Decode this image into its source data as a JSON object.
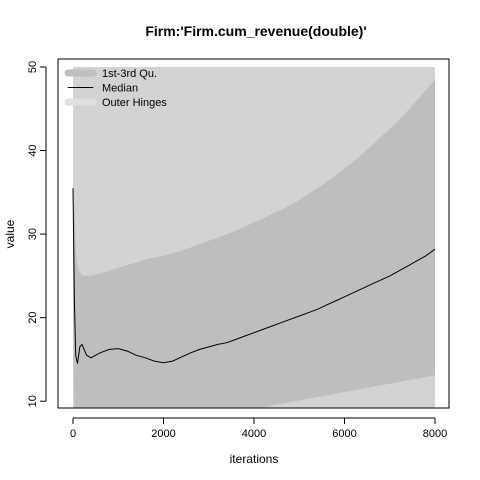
{
  "chart_data": {
    "type": "area",
    "title": "Firm:'Firm.cum_revenue(double)'",
    "xlabel": "iterations",
    "ylabel": "value",
    "xlim": [
      0,
      8000
    ],
    "ylim": [
      5,
      50
    ],
    "x_ticks": [
      "0",
      "2000",
      "4000",
      "6000",
      "8000"
    ],
    "y_ticks": [
      "10",
      "20",
      "30",
      "40",
      "50"
    ],
    "grid": false,
    "legend_position": "top-left",
    "legend": [
      "1st-3rd Qu.",
      "Median",
      "Outer Hinges"
    ],
    "colors": {
      "outer_hinges": "#d3d3d3",
      "quartiles": "#bebebe",
      "median": "#000000",
      "axis": "#000000"
    },
    "series": [
      {
        "name": "Outer Hinges",
        "x": [
          0,
          30,
          60,
          100,
          150,
          200,
          400,
          600,
          800,
          1000,
          1200,
          1400,
          1600,
          1800,
          2000,
          2200,
          2400,
          2600,
          2800,
          3000,
          3200,
          3400,
          3600,
          3800,
          4000,
          4200,
          4400,
          4600,
          4800,
          5000,
          5200,
          5400,
          5600,
          5800,
          6000,
          6200,
          6400,
          6600,
          6800,
          7000,
          7200,
          7400,
          7600,
          7800,
          8000
        ],
        "lower": [
          5,
          5,
          5,
          5,
          5,
          5,
          5,
          5,
          5,
          5,
          5,
          5,
          5,
          5,
          5,
          5,
          5,
          5,
          5,
          5,
          5,
          5,
          5,
          5,
          5,
          5,
          5,
          5,
          5,
          5,
          5,
          5,
          5,
          5,
          5,
          5,
          5,
          5,
          5,
          5,
          5,
          5,
          5,
          5,
          5
        ],
        "upper": [
          50,
          50,
          50,
          50,
          50,
          50,
          50,
          50,
          50,
          50,
          50,
          50,
          50,
          50,
          50,
          50,
          50,
          50,
          50,
          50,
          50,
          50,
          50,
          50,
          50,
          50,
          50,
          50,
          50,
          50,
          50,
          50,
          50,
          50,
          50,
          50,
          50,
          50,
          50,
          50,
          50,
          50,
          50,
          50,
          50
        ]
      },
      {
        "name": "1st-3rd Qu.",
        "x": [
          0,
          30,
          60,
          100,
          150,
          200,
          400,
          600,
          800,
          1000,
          1200,
          1400,
          1600,
          1800,
          2000,
          2200,
          2400,
          2600,
          2800,
          3000,
          3200,
          3400,
          3600,
          3800,
          4000,
          4200,
          4400,
          4600,
          4800,
          5000,
          5200,
          5400,
          5600,
          5800,
          6000,
          6200,
          6400,
          6600,
          6800,
          7000,
          7200,
          7400,
          7600,
          7800,
          8000
        ],
        "lower": [
          20,
          8,
          6,
          8,
          9,
          9,
          8.5,
          8,
          7.8,
          7.6,
          7.4,
          7.2,
          7,
          6.9,
          6.8,
          7,
          7.2,
          7.5,
          7.7,
          8,
          8.2,
          8.4,
          8.6,
          8.8,
          9,
          9.2,
          9.5,
          9.7,
          9.9,
          10.1,
          10.3,
          10.5,
          10.7,
          10.9,
          11.1,
          11.3,
          11.5,
          11.7,
          11.9,
          12.1,
          12.3,
          12.5,
          12.7,
          12.9,
          13.1
        ],
        "upper": [
          30,
          34,
          28,
          26,
          25.5,
          25,
          25,
          25.3,
          25.6,
          26,
          26.3,
          26.6,
          27,
          27.2,
          27.4,
          27.7,
          28,
          28.4,
          28.8,
          29.2,
          29.6,
          30,
          30.4,
          30.9,
          31.4,
          31.9,
          32.4,
          32.9,
          33.5,
          34.1,
          34.8,
          35.5,
          36.2,
          37,
          37.8,
          38.7,
          39.6,
          40.6,
          41.6,
          42.6,
          43.6,
          44.8,
          46,
          47.2,
          48.5
        ]
      },
      {
        "name": "Median",
        "x": [
          0,
          30,
          60,
          100,
          150,
          200,
          300,
          400,
          500,
          600,
          800,
          1000,
          1200,
          1400,
          1600,
          1800,
          2000,
          2200,
          2400,
          2600,
          2800,
          3000,
          3200,
          3400,
          3600,
          3800,
          4000,
          4200,
          4400,
          4600,
          4800,
          5000,
          5200,
          5400,
          5600,
          5800,
          6000,
          6200,
          6400,
          6600,
          6800,
          7000,
          7200,
          7400,
          7600,
          7800,
          8000
        ],
        "values": [
          35.5,
          22,
          15.5,
          14.5,
          16.5,
          16.8,
          15.5,
          15.2,
          15.5,
          15.8,
          16.2,
          16.3,
          16,
          15.5,
          15.2,
          14.8,
          14.6,
          14.8,
          15.3,
          15.8,
          16.2,
          16.5,
          16.8,
          17,
          17.4,
          17.8,
          18.2,
          18.6,
          19,
          19.4,
          19.8,
          20.2,
          20.6,
          21,
          21.5,
          22,
          22.5,
          23,
          23.5,
          24,
          24.5,
          25,
          25.6,
          26.2,
          26.8,
          27.4,
          28.2
        ]
      }
    ]
  }
}
